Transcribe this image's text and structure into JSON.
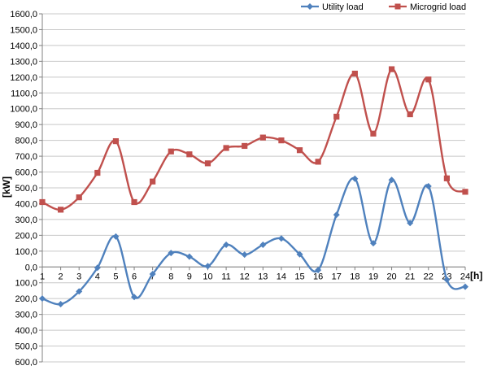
{
  "chart_data": {
    "type": "line",
    "title": "",
    "xlabel": "[h]",
    "ylabel": "[kW]",
    "x": [
      1,
      2,
      3,
      4,
      5,
      6,
      7,
      8,
      9,
      10,
      11,
      12,
      13,
      14,
      15,
      16,
      17,
      18,
      19,
      20,
      21,
      22,
      23,
      24
    ],
    "ylim": [
      -600,
      1600
    ],
    "y_ticks": [
      1600,
      1500,
      1400,
      1300,
      1200,
      1100,
      1000,
      900,
      800,
      700,
      600,
      500,
      400,
      300,
      200,
      100,
      0,
      -100,
      -200,
      -300,
      -400,
      -500,
      -600
    ],
    "y_tick_labels": [
      "1600,0",
      "1500,0",
      "1400,0",
      "1300,0",
      "1200,0",
      "1100,0",
      "1000,0",
      "900,0",
      "800,0",
      "700,0",
      "600,0",
      "500,0",
      "400,0",
      "300,0",
      "200,0",
      "100,0",
      "0,0",
      "100,0",
      "200,0",
      "300,0",
      "400,0",
      "500,0",
      "600,0"
    ],
    "grid": "horizontal",
    "legend": "top-right",
    "series": [
      {
        "name": "Utility load",
        "color": "#4f81bd",
        "marker": "diamond",
        "values": [
          -200,
          -235,
          -155,
          -5,
          192,
          -190,
          -45,
          88,
          65,
          5,
          140,
          78,
          140,
          180,
          80,
          -20,
          330,
          558,
          150,
          550,
          278,
          510,
          -80,
          -125
        ]
      },
      {
        "name": "Microgrid load",
        "color": "#c0504d",
        "marker": "square",
        "values": [
          410,
          362,
          440,
          595,
          795,
          410,
          540,
          730,
          712,
          655,
          752,
          765,
          818,
          800,
          738,
          665,
          950,
          1222,
          843,
          1250,
          965,
          1185,
          560,
          475
        ]
      }
    ]
  }
}
